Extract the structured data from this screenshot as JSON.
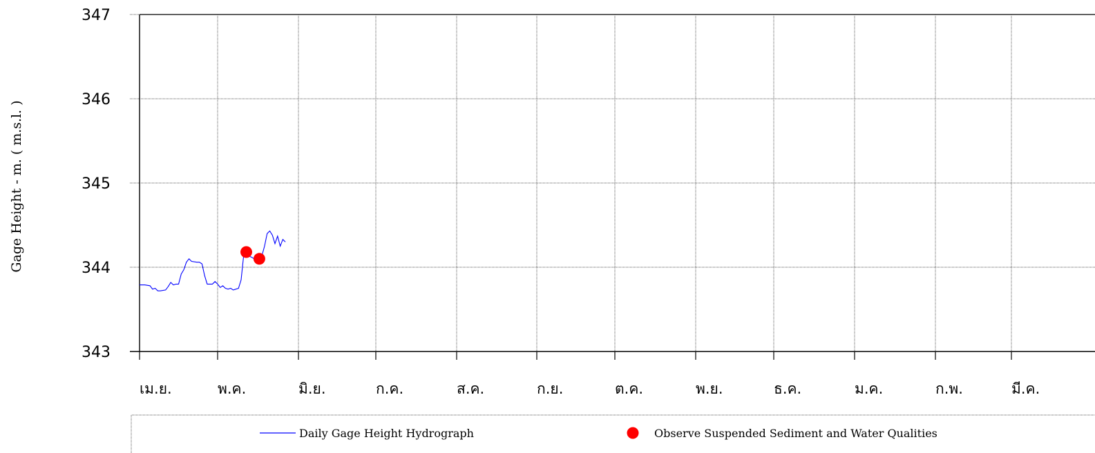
{
  "chart_data": {
    "type": "line",
    "title": "",
    "xlabel": "",
    "ylabel": "Gage Height  -  m.  ( m.s.l. )",
    "ylim": [
      343,
      347
    ],
    "yticks": [
      343,
      344,
      345,
      346,
      347
    ],
    "x_categories": [
      "เม.ย.",
      "พ.ค.",
      "มิ.ย.",
      "ก.ค.",
      "ส.ค.",
      "ก.ย.",
      "ต.ค.",
      "พ.ย.",
      "ธ.ค.",
      "ม.ค.",
      "ก.พ.",
      "มี.ค."
    ],
    "grid": true,
    "legend_position": "bottom",
    "series": [
      {
        "name": "Daily Gage Height Hydrograph",
        "kind": "line",
        "color": "#0000ff",
        "x_day": [
          0,
          2,
          4,
          5,
          6,
          7,
          8,
          10,
          11,
          12,
          13,
          14,
          15,
          16,
          17,
          18,
          19,
          20,
          22,
          23,
          24,
          25,
          26,
          27,
          28,
          29,
          30,
          31,
          32,
          33,
          34,
          35,
          36,
          37,
          38,
          39,
          40,
          41,
          42,
          43,
          44,
          45,
          46,
          47,
          48,
          49,
          50,
          51,
          52,
          53,
          54,
          55,
          56
        ],
        "y": [
          343.79,
          343.79,
          343.78,
          343.74,
          343.75,
          343.72,
          343.72,
          343.73,
          343.77,
          343.82,
          343.79,
          343.8,
          343.8,
          343.92,
          343.97,
          344.06,
          344.1,
          344.07,
          344.06,
          344.06,
          344.04,
          343.9,
          343.8,
          343.8,
          343.8,
          343.83,
          343.8,
          343.76,
          343.78,
          343.75,
          343.74,
          343.75,
          343.73,
          343.74,
          343.75,
          343.85,
          344.14,
          344.15,
          344.13,
          344.12,
          344.1,
          344.09,
          344.1,
          344.14,
          344.25,
          344.4,
          344.43,
          344.38,
          344.28,
          344.37,
          344.25,
          344.33,
          344.3
        ]
      },
      {
        "name": "Observe Suspended Sediment and Water Qualities",
        "kind": "scatter",
        "color": "#ff0000",
        "x_day": [
          41,
          46
        ],
        "y": [
          344.18,
          344.1
        ]
      }
    ]
  }
}
